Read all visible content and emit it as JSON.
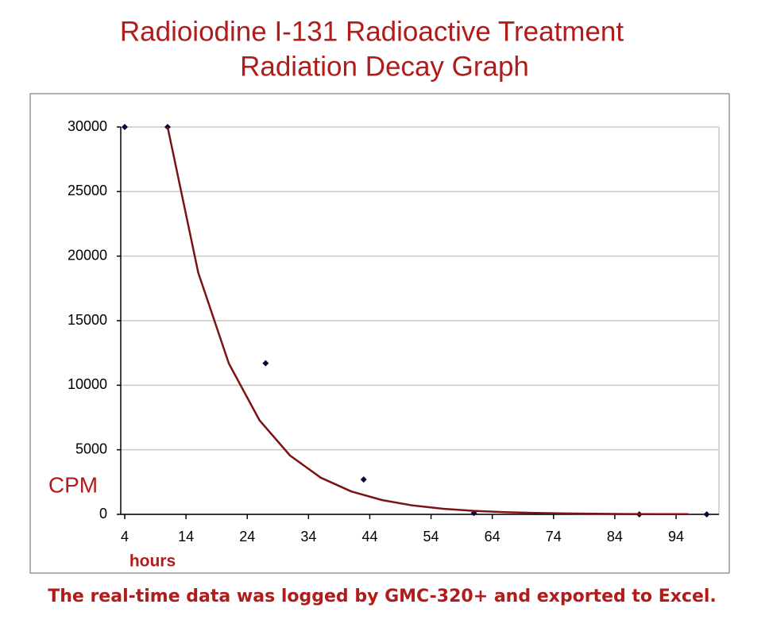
{
  "chart_data": {
    "type": "scatter",
    "title": "Radioiodine I-131 Radioactive Treatment",
    "subtitle": "Radiation Decay Graph",
    "y_label": "CPM",
    "x_label": "hours",
    "note": "The real-time data was logged by GMC-320+ and exported to Excel.",
    "xlim": [
      4,
      101
    ],
    "xticks": [
      4,
      14,
      24,
      34,
      44,
      54,
      64,
      74,
      84,
      94
    ],
    "ylim": [
      0,
      30000
    ],
    "yticks": [
      0,
      5000,
      10000,
      15000,
      20000,
      25000,
      30000
    ],
    "grid": true,
    "series": [
      {
        "type": "scatter",
        "color": "#0a0a3a",
        "x": [
          4,
          11,
          27,
          43,
          61,
          88,
          99
        ],
        "values": [
          30000,
          30000,
          11700,
          2700,
          100,
          0,
          0
        ]
      },
      {
        "type": "line",
        "color": "#7a1414",
        "x": [
          11,
          16,
          21,
          26,
          31,
          36,
          41,
          46,
          51,
          56,
          61,
          66,
          71,
          76,
          81,
          86,
          91,
          96
        ],
        "values": [
          30000,
          18723,
          11683,
          7292,
          4551,
          2840,
          1773,
          1106,
          690,
          431,
          269,
          168,
          105,
          65,
          41,
          25,
          16,
          10
        ]
      }
    ]
  }
}
